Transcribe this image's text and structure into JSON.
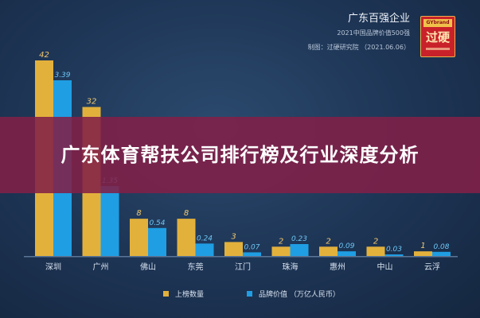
{
  "header": {
    "title": "广东百强企业",
    "subtitle": "2021中国品牌价值500强",
    "credit": "制图：过硬研究院 （2021.06.06）"
  },
  "brand": {
    "label_en": "GYbrand",
    "label_cn": "过硬"
  },
  "banner": {
    "title": "广东体育帮扶公司排行榜及行业深度分析"
  },
  "colors": {
    "series_count": "#e2b13c",
    "series_value": "#1f9ee3",
    "background": "#1d3454",
    "banner": "#822048"
  },
  "chart_data": {
    "type": "bar",
    "categories": [
      "深圳",
      "广州",
      "佛山",
      "东莞",
      "江门",
      "珠海",
      "惠州",
      "中山",
      "云浮"
    ],
    "series": [
      {
        "name": "上榜数量",
        "values": [
          42,
          32,
          8,
          8,
          3,
          2,
          2,
          2,
          1
        ],
        "labels": [
          "42",
          "32",
          "8",
          "8",
          "3",
          "2",
          "2",
          "2",
          "1"
        ]
      },
      {
        "name": "品牌价值 （万亿人民币）",
        "values": [
          3.39,
          1.35,
          0.54,
          0.24,
          0.07,
          0.23,
          0.09,
          0.03,
          0.08
        ],
        "labels": [
          "3.39",
          "1.35",
          "0.54",
          "0.24",
          "0.07",
          "0.23",
          "0.09",
          "0.03",
          "0.08"
        ]
      }
    ],
    "legend_position": "bottom-center",
    "grid": false
  }
}
